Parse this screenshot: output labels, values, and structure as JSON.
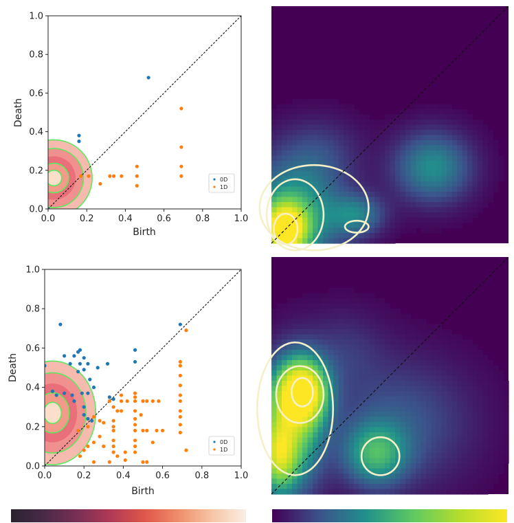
{
  "colors": {
    "h0": "#1f77b4",
    "h1": "#ff7f0e",
    "contour_green": "#5ee85e",
    "contour_cream": "#f4f0c8",
    "viridis_bg": "#440154"
  },
  "colorbars": [
    {
      "name": "rocket",
      "stops": [
        "#2a2330",
        "#4a2a48",
        "#7b2f55",
        "#b23a55",
        "#e0584a",
        "#ef8e6a",
        "#f6c6a6",
        "#faeee4"
      ]
    },
    {
      "name": "viridis",
      "stops": [
        "#440154",
        "#3b528b",
        "#21918c",
        "#5ec962",
        "#b5de2b",
        "#fde725"
      ]
    }
  ],
  "chart_data": [
    {
      "type": "scatter",
      "panel": "top-left",
      "xlabel": "Birth",
      "ylabel": "Death",
      "xlim": [
        0,
        1
      ],
      "ylim": [
        0,
        1
      ],
      "xticks": [
        "0.0",
        "0.2",
        "0.4",
        "0.6",
        "0.8",
        "1.0"
      ],
      "yticks": [
        "0.0",
        "0.2",
        "0.4",
        "0.6",
        "0.8",
        "1.0"
      ],
      "diagonal": true,
      "legend_position": "lower-right",
      "kde_overlay": {
        "center": [
          0.03,
          0.16
        ],
        "spread": [
          0.09,
          0.09
        ],
        "colormap": "rocket"
      },
      "series": [
        {
          "name": "0D",
          "color": "#1f77b4",
          "points": [
            [
              0.52,
              0.68
            ],
            [
              0.16,
              0.38
            ],
            [
              0.16,
              0.35
            ],
            [
              0.0,
              0.0
            ]
          ]
        },
        {
          "name": "1D",
          "color": "#ff7f0e",
          "points": [
            [
              0.69,
              0.52
            ],
            [
              0.69,
              0.32
            ],
            [
              0.69,
              0.22
            ],
            [
              0.69,
              0.17
            ],
            [
              0.46,
              0.22
            ],
            [
              0.46,
              0.17
            ],
            [
              0.46,
              0.12
            ],
            [
              0.34,
              0.17
            ],
            [
              0.32,
              0.17
            ],
            [
              0.38,
              0.17
            ],
            [
              0.27,
              0.13
            ],
            [
              0.21,
              0.17
            ],
            [
              0.17,
              0.17
            ]
          ]
        }
      ]
    },
    {
      "type": "heatmap",
      "panel": "top-right",
      "xlim": [
        0,
        1
      ],
      "ylim": [
        0,
        1
      ],
      "colormap": "viridis",
      "diagonal": true,
      "blobs": [
        {
          "center": [
            0.06,
            0.06
          ],
          "spread": [
            0.06,
            0.07
          ],
          "weight": 1.0
        },
        {
          "center": [
            0.09,
            0.12
          ],
          "spread": [
            0.14,
            0.15
          ],
          "weight": 0.45
        },
        {
          "center": [
            0.68,
            0.32
          ],
          "spread": [
            0.11,
            0.1
          ],
          "weight": 0.35
        },
        {
          "center": [
            0.36,
            0.12
          ],
          "spread": [
            0.08,
            0.06
          ],
          "weight": 0.28
        },
        {
          "center": [
            0.2,
            0.38
          ],
          "spread": [
            0.12,
            0.1
          ],
          "weight": 0.12
        }
      ],
      "contours": [
        {
          "center": [
            0.06,
            0.06
          ],
          "radii": [
            0.05,
            0.065
          ]
        },
        {
          "center": [
            0.1,
            0.12
          ],
          "radii": [
            0.12,
            0.15
          ]
        },
        {
          "center": [
            0.18,
            0.15
          ],
          "radii": [
            0.23,
            0.18
          ]
        },
        {
          "center": [
            0.36,
            0.07
          ],
          "radii": [
            0.05,
            0.025
          ]
        }
      ]
    },
    {
      "type": "scatter",
      "panel": "bottom-left",
      "xlabel": "Birth",
      "ylabel": "Death",
      "xlim": [
        0,
        1
      ],
      "ylim": [
        0,
        1
      ],
      "xticks": [
        "0.0",
        "0.2",
        "0.4",
        "0.6",
        "0.8",
        "1.0"
      ],
      "yticks": [
        "0.0",
        "0.2",
        "0.4",
        "0.6",
        "0.8",
        "1.0"
      ],
      "diagonal": true,
      "legend_position": "lower-right",
      "kde_overlay": {
        "center": [
          0.04,
          0.27
        ],
        "spread": [
          0.1,
          0.12
        ],
        "colormap": "rocket"
      },
      "series": [
        {
          "name": "0D",
          "color": "#1f77b4",
          "points": [
            [
              0.08,
              0.72
            ],
            [
              0.69,
              0.72
            ],
            [
              0.46,
              0.59
            ],
            [
              0.18,
              0.59
            ],
            [
              0.17,
              0.58
            ],
            [
              0.1,
              0.56
            ],
            [
              0.15,
              0.56
            ],
            [
              0.2,
              0.55
            ],
            [
              0.18,
              0.52
            ],
            [
              0.22,
              0.52
            ],
            [
              0.13,
              0.52
            ],
            [
              0.32,
              0.52
            ],
            [
              0.27,
              0.5
            ],
            [
              0.46,
              0.53
            ],
            [
              0.17,
              0.48
            ],
            [
              0.2,
              0.49
            ],
            [
              0.23,
              0.44
            ],
            [
              0.22,
              0.37
            ],
            [
              0.25,
              0.4
            ],
            [
              0.33,
              0.35
            ],
            [
              0.35,
              0.34
            ],
            [
              0.19,
              0.37
            ],
            [
              0.2,
              0.3
            ],
            [
              0.2,
              0.26
            ],
            [
              0.22,
              0.24
            ],
            [
              0.24,
              0.23
            ],
            [
              0.14,
              0.36
            ],
            [
              0.1,
              0.37
            ],
            [
              0.0,
              0.51
            ],
            [
              0.04,
              0.38
            ],
            [
              0.06,
              0.36
            ],
            [
              0.15,
              0.33
            ]
          ]
        },
        {
          "name": "1D",
          "color": "#ff7f0e",
          "points": [
            [
              0.72,
              0.69
            ],
            [
              0.69,
              0.53
            ],
            [
              0.69,
              0.51
            ],
            [
              0.69,
              0.46
            ],
            [
              0.69,
              0.41
            ],
            [
              0.69,
              0.36
            ],
            [
              0.69,
              0.33
            ],
            [
              0.69,
              0.28
            ],
            [
              0.69,
              0.25
            ],
            [
              0.69,
              0.21
            ],
            [
              0.69,
              0.17
            ],
            [
              0.72,
              0.08
            ],
            [
              0.46,
              0.37
            ],
            [
              0.46,
              0.35
            ],
            [
              0.46,
              0.33
            ],
            [
              0.46,
              0.28
            ],
            [
              0.46,
              0.24
            ],
            [
              0.46,
              0.21
            ],
            [
              0.46,
              0.18
            ],
            [
              0.46,
              0.13
            ],
            [
              0.46,
              0.1
            ],
            [
              0.46,
              0.07
            ],
            [
              0.5,
              0.33
            ],
            [
              0.52,
              0.33
            ],
            [
              0.55,
              0.33
            ],
            [
              0.58,
              0.33
            ],
            [
              0.5,
              0.18
            ],
            [
              0.52,
              0.18
            ],
            [
              0.57,
              0.18
            ],
            [
              0.6,
              0.18
            ],
            [
              0.5,
              0.02
            ],
            [
              0.52,
              0.02
            ],
            [
              0.33,
              0.33
            ],
            [
              0.35,
              0.3
            ],
            [
              0.37,
              0.28
            ],
            [
              0.39,
              0.28
            ],
            [
              0.42,
              0.33
            ],
            [
              0.35,
              0.23
            ],
            [
              0.35,
              0.2
            ],
            [
              0.35,
              0.18
            ],
            [
              0.35,
              0.13
            ],
            [
              0.35,
              0.1
            ],
            [
              0.35,
              0.07
            ],
            [
              0.37,
              0.05
            ],
            [
              0.33,
              0.02
            ],
            [
              0.41,
              0.07
            ],
            [
              0.41,
              0.03
            ],
            [
              0.3,
              0.1
            ],
            [
              0.25,
              0.25
            ],
            [
              0.28,
              0.23
            ],
            [
              0.3,
              0.22
            ],
            [
              0.28,
              0.15
            ],
            [
              0.25,
              0.12
            ],
            [
              0.22,
              0.1
            ],
            [
              0.2,
              0.08
            ],
            [
              0.18,
              0.05
            ],
            [
              0.25,
              0.02
            ],
            [
              0.22,
              0.2
            ],
            [
              0.17,
              0.18
            ],
            [
              0.39,
              0.36
            ],
            [
              0.39,
              0.33
            ],
            [
              0.55,
              0.12
            ],
            [
              0.49,
              0.26
            ]
          ]
        }
      ]
    },
    {
      "type": "heatmap",
      "panel": "bottom-right",
      "xlim": [
        0,
        1
      ],
      "ylim": [
        0,
        1
      ],
      "colormap": "viridis",
      "diagonal": true,
      "blobs": [
        {
          "center": [
            0.13,
            0.43
          ],
          "spread": [
            0.07,
            0.09
          ],
          "weight": 1.0
        },
        {
          "center": [
            0.08,
            0.28
          ],
          "spread": [
            0.09,
            0.18
          ],
          "weight": 0.6
        },
        {
          "center": [
            0.03,
            0.16
          ],
          "spread": [
            0.05,
            0.1
          ],
          "weight": 0.55
        },
        {
          "center": [
            0.44,
            0.17
          ],
          "spread": [
            0.09,
            0.09
          ],
          "weight": 0.42
        },
        {
          "center": [
            0.55,
            0.3
          ],
          "spread": [
            0.2,
            0.18
          ],
          "weight": 0.18
        },
        {
          "center": [
            0.3,
            0.6
          ],
          "spread": [
            0.12,
            0.12
          ],
          "weight": 0.1
        }
      ],
      "contours": [
        {
          "center": [
            0.13,
            0.43
          ],
          "radii": [
            0.045,
            0.06
          ]
        },
        {
          "center": [
            0.12,
            0.42
          ],
          "radii": [
            0.1,
            0.12
          ]
        },
        {
          "center": [
            0.1,
            0.36
          ],
          "radii": [
            0.16,
            0.28
          ]
        },
        {
          "center": [
            0.46,
            0.16
          ],
          "radii": [
            0.08,
            0.08
          ]
        }
      ]
    }
  ]
}
